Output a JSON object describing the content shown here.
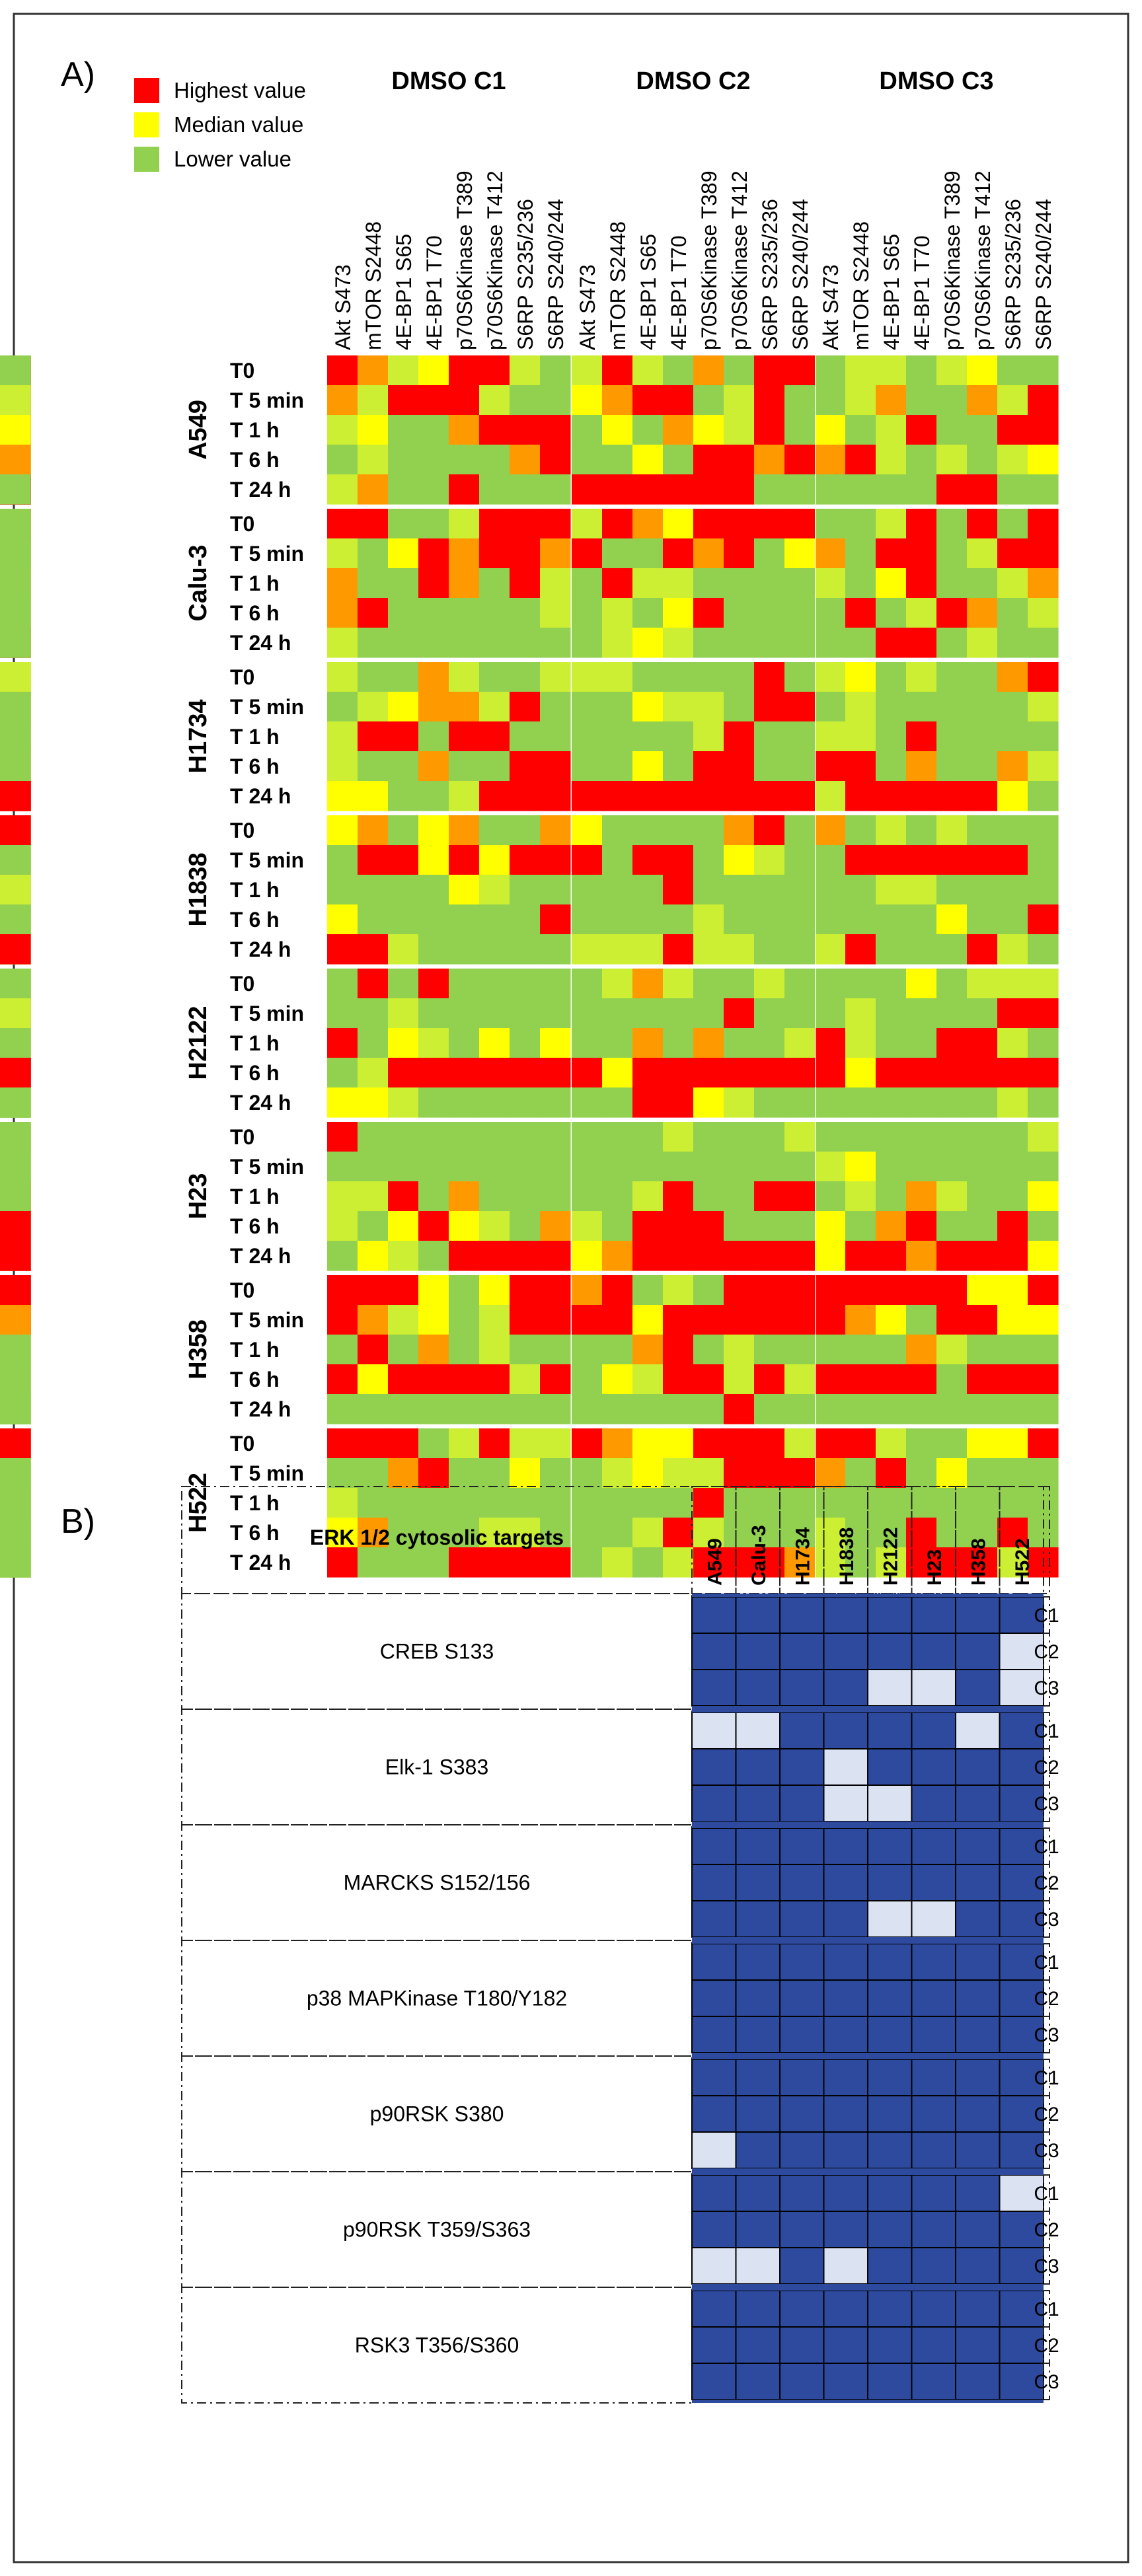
{
  "colors": {
    "high": "#ff0000",
    "median": "#ffff00",
    "low": "#92d050",
    "orange": "#ff9900",
    "yellowgreen": "#ccee33",
    "dark": "#2e4a9e",
    "light": "#dbe2f2"
  },
  "chart_data": [
    {
      "type": "heatmap",
      "panel_label": "A)",
      "legend": [
        {
          "label": "Highest value",
          "color_key": "high"
        },
        {
          "label": "Median value",
          "color_key": "median"
        },
        {
          "label": "Lower value",
          "color_key": "low"
        }
      ],
      "groups": [
        "DMSO C1",
        "DMSO C2",
        "DMSO C3"
      ],
      "columns": [
        "Akt S473",
        "mTOR S2448",
        "4E-BP1 S65",
        "4E-BP1 T70",
        "p70S6Kinase T389",
        "p70S6Kinase T412",
        "S6RP S235/236",
        "S6RP S240/244"
      ],
      "row_labels": [
        "T0",
        "T 5 min",
        "T 1 h",
        "T 6 h",
        "T 24 h"
      ],
      "cell_lines": [
        {
          "name": "A549",
          "grid": [
            "HOMYHHMLMHMLOLHHLMMLMYLLLMOLLHHL",
            "OMHHHMLLYOHHLMHLLMOLLOMHOMHLHMLM",
            "MYLLOHHHLYLOYMHLYLMHLLHHLLMLLHHY",
            "LMLLLLOHLLYLHHOHOHMLMLMYLLLLLMMO",
            "MOLLHLLLHHHHHHLLLLLLHHLLHHHHHHHL"
          ]
        },
        {
          "name": "Calu-3",
          "grid": [
            "HHLLMHHHMHOYHHHHLLMHLHLHLLMMHOHL",
            "MLYHOHHOHLLHOHLYOLHHLMHHLMLYLHLL",
            "OLLHOLHMLHMMLLLLMLYHLLMOMLHHYMLL",
            "OHLLLLLMLMLYHLLLLHLMHOLMLLLLYLOL",
            "MLLLLLLLLMYMLLLLLLHHLMLLLLLLHMHL"
          ]
        },
        {
          "name": "H1734",
          "grid": [
            "MLLOMLLMMMLLLLHLMYLMLLOHHMMYMLMM",
            "LMYOOMHLLLYMMLHHLMLLLLLMMMMHLLLL",
            "MHHLHHLLLLLLMHLLMMLHLLLLLOLHLLYL",
            "MLLOLLHHLLYLHHLLHHLOLLOMYLMHHYLL",
            "YYLLMHHHHHHHHHHHMHHHHHYLYHOHHHHH"
          ]
        },
        {
          "name": "H1838",
          "grid": [
            "YOLYOLLOYLLLLOHLOLMLMLLLLMHYMLHH",
            "LHHYHYHHHLHHLYMLLHHHHHHLYLLLLMLL",
            "LLLLYMLLLLLHLLLLLLMMLLLLLLMLLLMM",
            "YLLLLLLHLLLLMLLLLLLLYLLHHLMLLLLL",
            "HHMLLLLLMMMHMMLLMHLLLHMLMLLMYLLH"
          ]
        },
        {
          "name": "H2122",
          "grid": [
            "LHLHLLLLLMOMLLMLLLLYLMMMLLMMLLLL",
            "LLMLLLLLLLLLLHLLLMLLLLHHLLMHLMLM",
            "HLYMLYLYLLOLOLLMHMLLHHMLLYOLLMLL",
            "LMHHHHHHHYHHHHHHHYHHHHHHHLHHHHHH",
            "YYMLLLLLLLHHYMLLLLLLLLMLOLLLLLLL"
          ]
        },
        {
          "name": "H23",
          "grid": [
            "HLLLLLLLLLLMLLLMLLLLLLLMLMHLLLLL",
            "LLLLLLLLLLLLLLLLMYLLLLLLMMLYLLLL",
            "MMHLOLLLLLMHLLHHLMLOMLLYLLLHHHYL",
            "MLYHYMLOMLHHHLLLYLOHLLHLYYHHLLHH",
            "LYMLHHHHYOHHHHHHYHHOHHHYLMMHHLHH"
          ]
        },
        {
          "name": "H358",
          "grid": [
            "HHHYLYHHOHLMLHHHHHHHHYYHMHHHHOHH",
            "HOMYLMHHHHYHHHHHHOYLHHYYLHHHHHYO",
            "LHLOLMLLLLOHLMLLLLLOMLLLLLMLMMLL",
            "HYHHHHMHLYMHHMHMHHHHLHHHMMOLYLLL",
            "LLLLLLLLLLLLLHLLLLLLLLLLLLLLLLLL"
          ]
        },
        {
          "name": "H522",
          "grid": [
            "HHHLMHMMHOYYHHHMHHMLLYYHLLHHOOHH",
            "LLOHLLYLLMYMMHHHOLHLYLLLMMLLLLLL",
            "MLLLLLLLLLLLHLLLLLLLLLLLLHLLMLLL",
            "YOLLLMMLLLMHMLLLMLLHLLHLLYLLLMLL",
            "HLLLHHHHLMLMHHHOMLMHHHMHLLLOLLLL"
          ]
        }
      ]
    },
    {
      "type": "table",
      "panel_label": "B)",
      "header": "ERK 1/2 cytosolic targets",
      "columns": [
        "A549",
        "Calu-3",
        "H1734",
        "H1838",
        "H2122",
        "H23",
        "H358",
        "H522"
      ],
      "conditions": [
        "C1",
        "C2",
        "C3"
      ],
      "targets": [
        {
          "name": "CREB S133",
          "rows": [
            "DDDDDDDD",
            "DDDDDDDL",
            "DDDDLLDL"
          ]
        },
        {
          "name": "Elk-1 S383",
          "rows": [
            "LLDDDDLD",
            "DDDLDDDD",
            "DDDLLDDD"
          ]
        },
        {
          "name": "MARCKS S152/156",
          "rows": [
            "DDDDDDDD",
            "DDDDDDDD",
            "DDDDLLDD"
          ]
        },
        {
          "name": "p38 MAPKinase T180/Y182",
          "rows": [
            "DDDDDDDD",
            "DDDDDDDD",
            "DDDDDDDD"
          ]
        },
        {
          "name": "p90RSK S380",
          "rows": [
            "DDDDDDDD",
            "DDDDDDDD",
            "LDDDDDDD"
          ]
        },
        {
          "name": "p90RSK T359/S363",
          "rows": [
            "DDDDDDDL",
            "DDDDDDDD",
            "LLDLDDDD"
          ]
        },
        {
          "name": "RSK3 T356/S360",
          "rows": [
            "DDDDDDDD",
            "DDDDDDDD",
            "DDDDDDDD"
          ]
        }
      ]
    }
  ]
}
